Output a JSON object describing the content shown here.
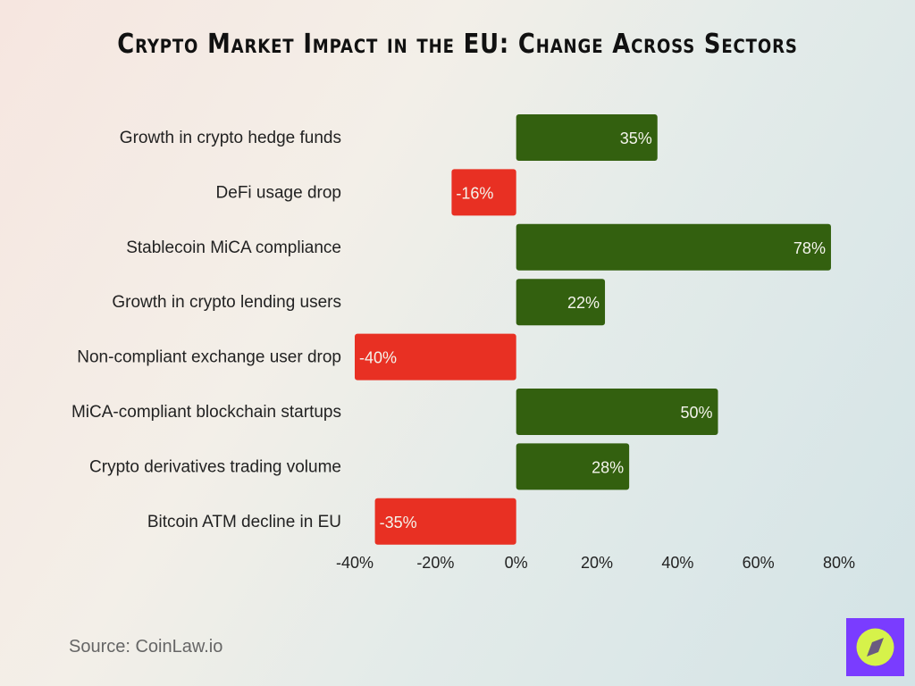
{
  "chart_data": {
    "type": "bar",
    "orientation": "horizontal",
    "title": "Crypto Market Impact in the EU: Change Across Sectors",
    "categories": [
      "Growth in crypto hedge funds",
      "DeFi usage drop",
      "Stablecoin MiCA compliance",
      "Growth in crypto lending users",
      "Non-compliant exchange user drop",
      "MiCA-compliant blockchain startups",
      "Crypto derivatives trading volume",
      "Bitcoin ATM decline in EU"
    ],
    "values": [
      35,
      -16,
      78,
      22,
      -40,
      50,
      28,
      -35
    ],
    "data_labels": [
      "35%",
      "-16%",
      "78%",
      "22%",
      "-40%",
      "50%",
      "28%",
      "-35%"
    ],
    "xlim": [
      -40,
      80
    ],
    "x_ticks": [
      -40,
      -20,
      0,
      20,
      40,
      60,
      80
    ],
    "x_tick_labels": [
      "-40%",
      "-20%",
      "0%",
      "20%",
      "40%",
      "60%",
      "80%"
    ],
    "grid": false,
    "colors": {
      "positive": "#33600f",
      "negative": "#e83023"
    }
  },
  "source": "Source: CoinLaw.io",
  "logo": {
    "icon": "compass-icon",
    "bg": "#7a3cff",
    "fg": "#d6f24a"
  }
}
